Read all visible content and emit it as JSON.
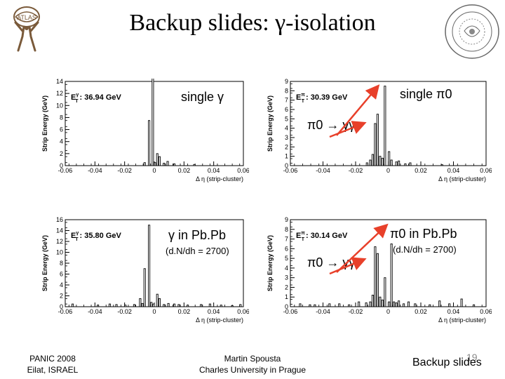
{
  "slide": {
    "title": "Backup slides: γ-isolation",
    "page_number": "19",
    "footer_left_line1": "PANIC 2008",
    "footer_left_line2": "Eilat, ISRAEL",
    "footer_center_line1": "Martin Spousta",
    "footer_center_line2": "Charles University in Prague",
    "footer_right": "Backup slides"
  },
  "annotations": {
    "single_gamma": "single γ",
    "single_pi0": "single π0",
    "pi0_gg_top": "π0 → γγ",
    "gamma_pbpb": "γ in Pb.Pb",
    "dndh_left": "(d.N/dh = 2700)",
    "pi0_pbpb": "π0 in Pb.Pb",
    "dndh_right": "(d.N/dh = 2700)",
    "pi0_gg_bottom": "π0 → γγ"
  },
  "colors": {
    "arrow": "#e8402a",
    "bar": "#000000",
    "axis": "#000000"
  },
  "chart_data": [
    {
      "type": "bar",
      "et_label": "E",
      "et_sup": "γ",
      "et_sub": "T",
      "et_value": ": 36.94 GeV",
      "ylabel": "Strip Energy (GeV)",
      "xlabel": "Δ η (strip-cluster)",
      "xlim": [
        -0.06,
        0.06
      ],
      "ylim": [
        0,
        14
      ],
      "yticks": [
        "0",
        "2",
        "4",
        "6",
        "8",
        "10",
        "12",
        "14"
      ],
      "xticks": [
        "-0.06",
        "-0.04",
        "-0.02",
        "0",
        "0.02",
        "0.04",
        "0.06"
      ],
      "x": [
        -0.0065,
        -0.0035,
        -0.001,
        0.0005,
        0.002,
        0.0035,
        0.0065,
        0.009,
        0.0135,
        0.027
      ],
      "values": [
        0.5,
        7.5,
        15.0,
        0.5,
        2.0,
        1.5,
        0.4,
        0.7,
        0.3,
        0.2
      ]
    },
    {
      "type": "bar",
      "et_label": "E",
      "et_sup": "π",
      "et_sub": "T",
      "et_value": ": 30.39 GeV",
      "ylabel": "Strip Energy (GeV)",
      "xlabel": "Δ η (strip-cluster)",
      "xlim": [
        -0.06,
        0.06
      ],
      "ylim": [
        0,
        9
      ],
      "yticks": [
        "0",
        "1",
        "2",
        "3",
        "4",
        "5",
        "6",
        "7",
        "8",
        "9"
      ],
      "xticks": [
        "-0.06",
        "-0.04",
        "-0.02",
        "0",
        "0.02",
        "0.04",
        "0.06"
      ],
      "x": [
        -0.013,
        -0.011,
        -0.0095,
        -0.008,
        -0.0065,
        -0.005,
        -0.0035,
        -0.002,
        0.0005,
        0.002,
        0.005,
        0.0065,
        0.0105,
        0.0135,
        0.033
      ],
      "values": [
        0.3,
        0.6,
        1.2,
        4.5,
        5.5,
        1.0,
        0.8,
        8.5,
        1.5,
        0.6,
        0.4,
        0.5,
        0.2,
        0.3,
        0.1
      ]
    },
    {
      "type": "bar",
      "et_label": "E",
      "et_sup": "γ",
      "et_sub": "T",
      "et_value": ": 35.80 GeV",
      "ylabel": "Strip Energy (GeV)",
      "xlabel": "Δ η (strip-cluster)",
      "xlim": [
        -0.06,
        0.06
      ],
      "ylim": [
        0,
        16
      ],
      "yticks": [
        "0",
        "2",
        "4",
        "6",
        "8",
        "10",
        "12",
        "14",
        "16"
      ],
      "xticks": [
        "-0.06",
        "-0.04",
        "-0.02",
        "0",
        "0.02",
        "0.04",
        "0.06"
      ],
      "x": [
        -0.055,
        -0.038,
        -0.03,
        -0.0255,
        -0.0195,
        -0.0135,
        -0.0095,
        -0.008,
        -0.0065,
        -0.0035,
        -0.002,
        -0.0005,
        0.002,
        0.0035,
        0.0065,
        0.0095,
        0.0135,
        0.0165,
        0.0225,
        0.0315,
        0.0375,
        0.045,
        0.0525,
        0.058
      ],
      "values": [
        0.5,
        0.3,
        0.5,
        0.4,
        0.3,
        0.4,
        1.5,
        0.6,
        7.0,
        15.0,
        0.8,
        0.5,
        2.3,
        1.5,
        0.4,
        0.6,
        0.5,
        0.4,
        0.3,
        0.4,
        0.5,
        0.3,
        0.2,
        0.4
      ]
    },
    {
      "type": "bar",
      "et_label": "E",
      "et_sup": "π",
      "et_sub": "T",
      "et_value": ": 30.14 GeV",
      "ylabel": "Strip Energy (GeV)",
      "xlabel": "Δ η (strip-cluster)",
      "xlim": [
        -0.06,
        0.06
      ],
      "ylim": [
        0,
        9
      ],
      "yticks": [
        "0",
        "1",
        "2",
        "3",
        "4",
        "5",
        "6",
        "7",
        "8",
        "9"
      ],
      "xticks": [
        "-0.06",
        "-0.04",
        "-0.02",
        "0",
        "0.02",
        "0.04",
        "0.06"
      ],
      "x": [
        -0.054,
        -0.048,
        -0.045,
        -0.036,
        -0.03,
        -0.024,
        -0.018,
        -0.0135,
        -0.011,
        -0.0095,
        -0.008,
        -0.0065,
        -0.005,
        -0.0035,
        -0.002,
        0.0005,
        0.002,
        0.0035,
        0.005,
        0.0065,
        0.0095,
        0.0125,
        0.0165,
        0.0255,
        0.0315,
        0.0375,
        0.045,
        0.0525
      ],
      "values": [
        0.3,
        0.2,
        0.2,
        0.3,
        0.3,
        0.2,
        0.5,
        0.4,
        0.5,
        1.2,
        6.2,
        5.5,
        1.0,
        0.7,
        3.0,
        0.5,
        6.5,
        0.5,
        0.4,
        0.6,
        0.3,
        0.5,
        0.3,
        0.2,
        0.6,
        0.3,
        0.8,
        0.2
      ]
    }
  ]
}
